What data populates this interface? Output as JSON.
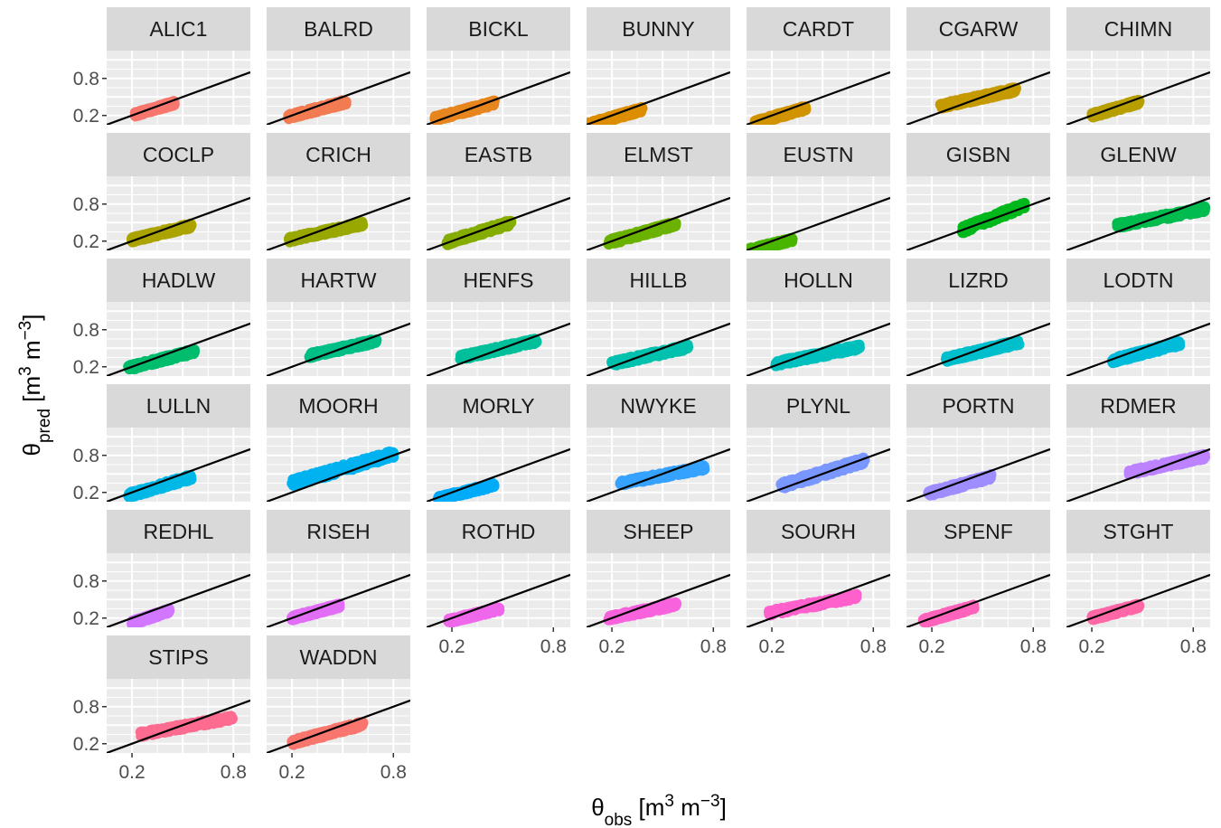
{
  "chart_data": {
    "type": "scatter",
    "facet_layout": "wrap",
    "ncol": 7,
    "xlabel": {
      "symbol": "θ",
      "sub": "obs",
      "unit_open": " [m",
      "unit_sup1": "3",
      "unit_mid": " m",
      "unit_sup2": "−3",
      "unit_close": "]"
    },
    "ylabel": {
      "symbol": "θ",
      "sub": "pred",
      "unit_open": " [m",
      "unit_sup1": "3",
      "unit_mid": " m",
      "unit_sup2": "−3",
      "unit_close": "]"
    },
    "xlim": [
      0.05,
      0.9
    ],
    "ylim": [
      0.05,
      1.25
    ],
    "x_ticks": [
      0.2,
      0.8
    ],
    "y_ticks": [
      0.2,
      0.8
    ],
    "x_tick_labels": [
      "0.2",
      "0.8"
    ],
    "y_tick_labels": [
      "0.2",
      "0.8"
    ],
    "reference_line": {
      "slope": 1,
      "intercept": 0,
      "color": "#000000"
    },
    "legend": "none",
    "panel_background": "#ebebeb",
    "strip_background": "#d9d9d9",
    "panels": [
      {
        "name": "ALIC1",
        "color": "#F8766D",
        "x": [
          0.22,
          0.45
        ],
        "y": [
          0.22,
          0.4
        ]
      },
      {
        "name": "BALRD",
        "color": "#F27B52",
        "x": [
          0.18,
          0.52
        ],
        "y": [
          0.18,
          0.42
        ]
      },
      {
        "name": "BICKL",
        "color": "#E7851E",
        "x": [
          0.1,
          0.45
        ],
        "y": [
          0.15,
          0.4
        ]
      },
      {
        "name": "BUNNY",
        "color": "#DC8D00",
        "x": [
          0.06,
          0.38
        ],
        "y": [
          0.05,
          0.3
        ]
      },
      {
        "name": "CARDT",
        "color": "#D29300",
        "x": [
          0.1,
          0.4
        ],
        "y": [
          0.08,
          0.32
        ]
      },
      {
        "name": "CGARW",
        "color": "#C49A00",
        "x": [
          0.25,
          0.7
        ],
        "y": [
          0.35,
          0.62
        ]
      },
      {
        "name": "CHIMN",
        "color": "#B89F00",
        "x": [
          0.2,
          0.48
        ],
        "y": [
          0.2,
          0.42
        ]
      },
      {
        "name": "COCLP",
        "color": "#ABA300",
        "x": [
          0.2,
          0.55
        ],
        "y": [
          0.22,
          0.45
        ]
      },
      {
        "name": "CRICH",
        "color": "#99A800",
        "x": [
          0.18,
          0.62
        ],
        "y": [
          0.22,
          0.48
        ]
      },
      {
        "name": "EASTB",
        "color": "#85AD00",
        "x": [
          0.17,
          0.55
        ],
        "y": [
          0.18,
          0.5
        ]
      },
      {
        "name": "ELMST",
        "color": "#6BB100",
        "x": [
          0.18,
          0.58
        ],
        "y": [
          0.18,
          0.48
        ]
      },
      {
        "name": "EUSTN",
        "color": "#4AB500",
        "x": [
          0.06,
          0.32
        ],
        "y": [
          0.05,
          0.22
        ]
      },
      {
        "name": "GISBN",
        "color": "#00B81B",
        "x": [
          0.38,
          0.75
        ],
        "y": [
          0.38,
          0.78
        ]
      },
      {
        "name": "GLENW",
        "color": "#00BB4E",
        "x": [
          0.35,
          0.87
        ],
        "y": [
          0.45,
          0.72
        ]
      },
      {
        "name": "HADLW",
        "color": "#00BD6D",
        "x": [
          0.18,
          0.57
        ],
        "y": [
          0.18,
          0.45
        ]
      },
      {
        "name": "HARTW",
        "color": "#00BF86",
        "x": [
          0.3,
          0.7
        ],
        "y": [
          0.38,
          0.62
        ]
      },
      {
        "name": "HENFS",
        "color": "#00C09B",
        "x": [
          0.25,
          0.7
        ],
        "y": [
          0.35,
          0.62
        ]
      },
      {
        "name": "HILLB",
        "color": "#00C1AD",
        "x": [
          0.2,
          0.65
        ],
        "y": [
          0.25,
          0.52
        ]
      },
      {
        "name": "HOLLN",
        "color": "#00C0BE",
        "x": [
          0.22,
          0.72
        ],
        "y": [
          0.25,
          0.52
        ]
      },
      {
        "name": "LIZRD",
        "color": "#00BFCD",
        "x": [
          0.28,
          0.72
        ],
        "y": [
          0.32,
          0.6
        ]
      },
      {
        "name": "LODTN",
        "color": "#00BCDA",
        "x": [
          0.32,
          0.72
        ],
        "y": [
          0.3,
          0.58
        ]
      },
      {
        "name": "LULLN",
        "color": "#00B8E5",
        "x": [
          0.18,
          0.55
        ],
        "y": [
          0.15,
          0.45
        ]
      },
      {
        "name": "MOORH",
        "color": "#00B2EF",
        "x": [
          0.2,
          0.8
        ],
        "y": [
          0.35,
          0.82
        ]
      },
      {
        "name": "MORLY",
        "color": "#00ABFA",
        "x": [
          0.12,
          0.45
        ],
        "y": [
          0.1,
          0.32
        ]
      },
      {
        "name": "NWYKE",
        "color": "#35A2FF",
        "x": [
          0.25,
          0.75
        ],
        "y": [
          0.35,
          0.6
        ]
      },
      {
        "name": "PLYNL",
        "color": "#7997FF",
        "x": [
          0.25,
          0.75
        ],
        "y": [
          0.3,
          0.72
        ]
      },
      {
        "name": "PORTN",
        "color": "#9E8DFF",
        "x": [
          0.18,
          0.55
        ],
        "y": [
          0.18,
          0.45
        ]
      },
      {
        "name": "RDMER",
        "color": "#BC82FF",
        "x": [
          0.42,
          0.87
        ],
        "y": [
          0.52,
          0.78
        ]
      },
      {
        "name": "REDHL",
        "color": "#D277FF",
        "x": [
          0.2,
          0.42
        ],
        "y": [
          0.12,
          0.32
        ]
      },
      {
        "name": "RISEH",
        "color": "#E36EF6",
        "x": [
          0.2,
          0.48
        ],
        "y": [
          0.2,
          0.4
        ]
      },
      {
        "name": "ROTHD",
        "color": "#EF67EB",
        "x": [
          0.18,
          0.48
        ],
        "y": [
          0.15,
          0.35
        ]
      },
      {
        "name": "SHEEP",
        "color": "#F962DD",
        "x": [
          0.18,
          0.58
        ],
        "y": [
          0.2,
          0.42
        ]
      },
      {
        "name": "SOURH",
        "color": "#FF61CC",
        "x": [
          0.18,
          0.7
        ],
        "y": [
          0.28,
          0.55
        ]
      },
      {
        "name": "SPENF",
        "color": "#FF63BB",
        "x": [
          0.15,
          0.45
        ],
        "y": [
          0.15,
          0.38
        ]
      },
      {
        "name": "STGHT",
        "color": "#FF67A6",
        "x": [
          0.2,
          0.48
        ],
        "y": [
          0.2,
          0.4
        ]
      },
      {
        "name": "STIPS",
        "color": "#FD6C90",
        "x": [
          0.25,
          0.8
        ],
        "y": [
          0.35,
          0.62
        ]
      },
      {
        "name": "WADDN",
        "color": "#F8766D",
        "x": [
          0.2,
          0.62
        ],
        "y": [
          0.22,
          0.52
        ]
      }
    ]
  }
}
